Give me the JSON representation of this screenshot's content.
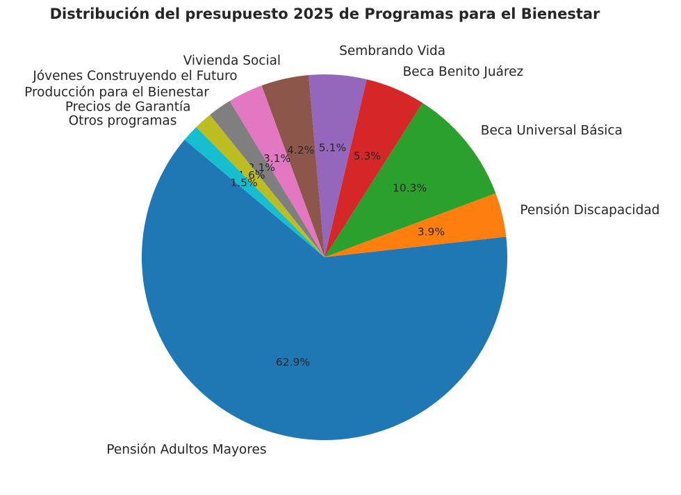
{
  "chart_data": {
    "type": "pie",
    "title": "Distribución del presupuesto 2025 de Programas para el Bienestar",
    "start_angle_deg": 140,
    "direction": "counterclockwise",
    "legend": "none",
    "slices": [
      {
        "label": "Pensión Adultos Mayores",
        "value": 62.9,
        "pct_text": "62.9%",
        "color": "#1f77b4"
      },
      {
        "label": "Pensión Discapacidad",
        "value": 3.9,
        "pct_text": "3.9%",
        "color": "#ff7f0e"
      },
      {
        "label": "Beca Universal Básica",
        "value": 10.3,
        "pct_text": "10.3%",
        "color": "#2ca02c"
      },
      {
        "label": "Beca Benito Juárez",
        "value": 5.3,
        "pct_text": "5.3%",
        "color": "#d62728"
      },
      {
        "label": "Sembrando Vida",
        "value": 5.1,
        "pct_text": "5.1%",
        "color": "#9467bd"
      },
      {
        "label": "Vivienda Social",
        "value": 4.2,
        "pct_text": "4.2%",
        "color": "#8c564b"
      },
      {
        "label": "Jóvenes Construyendo el Futuro",
        "value": 3.1,
        "pct_text": "3.1%",
        "color": "#e377c2"
      },
      {
        "label": "Producción para el Bienestar",
        "value": 2.1,
        "pct_text": "2.1%",
        "color": "#7f7f7f"
      },
      {
        "label": "Precios de Garantía",
        "value": 1.6,
        "pct_text": "1.6%",
        "color": "#bcbd22"
      },
      {
        "label": "Otros programas",
        "value": 1.5,
        "pct_text": "1.5%",
        "color": "#17becf"
      }
    ]
  }
}
